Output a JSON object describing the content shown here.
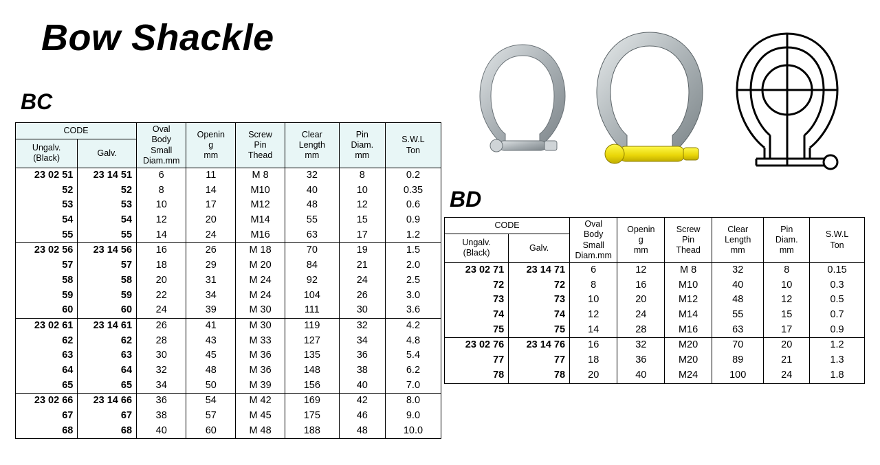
{
  "page": {
    "title": "Bow Shackle",
    "sections": {
      "bc": {
        "label": "BC"
      },
      "bd": {
        "label": "BD"
      }
    }
  },
  "columns": {
    "code": "CODE",
    "ungalv": "Ungalv.\n(Black)",
    "galv": "Galv.",
    "oval": "Oval\nBody\nSmall\nDiam.mm",
    "opening": "Openin\ng\nmm",
    "screw": "Screw\nPin\nThead",
    "clear": "Clear\nLength\nmm",
    "pin": "Pin\nDiam.\nmm",
    "swl": "S.W.L\nTon"
  },
  "styling": {
    "page_bg": "#ffffff",
    "text_color": "#000000",
    "header_tint": "#e8f6f6",
    "border_color": "#000000",
    "title_fontsize": 54,
    "title_style": "italic bold",
    "section_fontsize": 32,
    "body_font": "Arial",
    "cell_fontsize": 14.5,
    "small_header_fontsize": 9.5,
    "shackle_colors": {
      "steel": "#bfc4c7",
      "steel_dark": "#8e9599",
      "pin_yellow": "#f3e11a",
      "outline": "#000000"
    }
  },
  "bc": {
    "prefix_ungalv": "23 02",
    "prefix_galv": "23 14",
    "groups": [
      [
        {
          "u": "51",
          "g": "51",
          "oval": 6,
          "open": 11,
          "screw": "M  8",
          "clear": 32,
          "pin": 8,
          "swl": "0.2"
        },
        {
          "u": "52",
          "g": "52",
          "oval": 8,
          "open": 14,
          "screw": "M10",
          "clear": 40,
          "pin": 10,
          "swl": "0.35"
        },
        {
          "u": "53",
          "g": "53",
          "oval": 10,
          "open": 17,
          "screw": "M12",
          "clear": 48,
          "pin": 12,
          "swl": "0.6"
        },
        {
          "u": "54",
          "g": "54",
          "oval": 12,
          "open": 20,
          "screw": "M14",
          "clear": 55,
          "pin": 15,
          "swl": "0.9"
        },
        {
          "u": "55",
          "g": "55",
          "oval": 14,
          "open": 24,
          "screw": "M16",
          "clear": 63,
          "pin": 17,
          "swl": "1.2"
        }
      ],
      [
        {
          "u": "56",
          "g": "56",
          "oval": 16,
          "open": 26,
          "screw": "M 18",
          "clear": 70,
          "pin": 19,
          "swl": "1.5"
        },
        {
          "u": "57",
          "g": "57",
          "oval": 18,
          "open": 29,
          "screw": "M 20",
          "clear": 84,
          "pin": 21,
          "swl": "2.0"
        },
        {
          "u": "58",
          "g": "58",
          "oval": 20,
          "open": 31,
          "screw": "M 24",
          "clear": 92,
          "pin": 24,
          "swl": "2.5"
        },
        {
          "u": "59",
          "g": "59",
          "oval": 22,
          "open": 34,
          "screw": "M 24",
          "clear": 104,
          "pin": 26,
          "swl": "3.0"
        },
        {
          "u": "60",
          "g": "60",
          "oval": 24,
          "open": 39,
          "screw": "M 30",
          "clear": 111,
          "pin": 30,
          "swl": "3.6"
        }
      ],
      [
        {
          "u": "61",
          "g": "61",
          "oval": 26,
          "open": 41,
          "screw": "M 30",
          "clear": 119,
          "pin": 32,
          "swl": "4.2"
        },
        {
          "u": "62",
          "g": "62",
          "oval": 28,
          "open": 43,
          "screw": "M 33",
          "clear": 127,
          "pin": 34,
          "swl": "4.8"
        },
        {
          "u": "63",
          "g": "63",
          "oval": 30,
          "open": 45,
          "screw": "M 36",
          "clear": 135,
          "pin": 36,
          "swl": "5.4"
        },
        {
          "u": "64",
          "g": "64",
          "oval": 32,
          "open": 48,
          "screw": "M 36",
          "clear": 148,
          "pin": 38,
          "swl": "6.2"
        },
        {
          "u": "65",
          "g": "65",
          "oval": 34,
          "open": 50,
          "screw": "M 39",
          "clear": 156,
          "pin": 40,
          "swl": "7.0"
        }
      ],
      [
        {
          "u": "66",
          "g": "66",
          "oval": 36,
          "open": 54,
          "screw": "M 42",
          "clear": 169,
          "pin": 42,
          "swl": "8.0"
        },
        {
          "u": "67",
          "g": "67",
          "oval": 38,
          "open": 57,
          "screw": "M 45",
          "clear": 175,
          "pin": 46,
          "swl": "9.0"
        },
        {
          "u": "68",
          "g": "68",
          "oval": 40,
          "open": 60,
          "screw": "M 48",
          "clear": 188,
          "pin": 48,
          "swl": "10.0"
        }
      ]
    ]
  },
  "bd": {
    "prefix_ungalv": "23 02",
    "prefix_galv": "23 14",
    "groups": [
      [
        {
          "u": "71",
          "g": "71",
          "oval": 6,
          "open": 12,
          "screw": "M  8",
          "clear": 32,
          "pin": 8,
          "swl": "0.15"
        },
        {
          "u": "72",
          "g": "72",
          "oval": 8,
          "open": 16,
          "screw": "M10",
          "clear": 40,
          "pin": 10,
          "swl": "0.3"
        },
        {
          "u": "73",
          "g": "73",
          "oval": 10,
          "open": 20,
          "screw": "M12",
          "clear": 48,
          "pin": 12,
          "swl": "0.5"
        },
        {
          "u": "74",
          "g": "74",
          "oval": 12,
          "open": 24,
          "screw": "M14",
          "clear": 55,
          "pin": 15,
          "swl": "0.7"
        },
        {
          "u": "75",
          "g": "75",
          "oval": 14,
          "open": 28,
          "screw": "M16",
          "clear": 63,
          "pin": 17,
          "swl": "0.9"
        }
      ],
      [
        {
          "u": "76",
          "g": "76",
          "oval": 16,
          "open": 32,
          "screw": "M20",
          "clear": 70,
          "pin": 20,
          "swl": "1.2"
        },
        {
          "u": "77",
          "g": "77",
          "oval": 18,
          "open": 36,
          "screw": "M20",
          "clear": 89,
          "pin": 21,
          "swl": "1.3"
        },
        {
          "u": "78",
          "g": "78",
          "oval": 20,
          "open": 40,
          "screw": "M24",
          "clear": 100,
          "pin": 24,
          "swl": "1.8"
        }
      ]
    ]
  }
}
